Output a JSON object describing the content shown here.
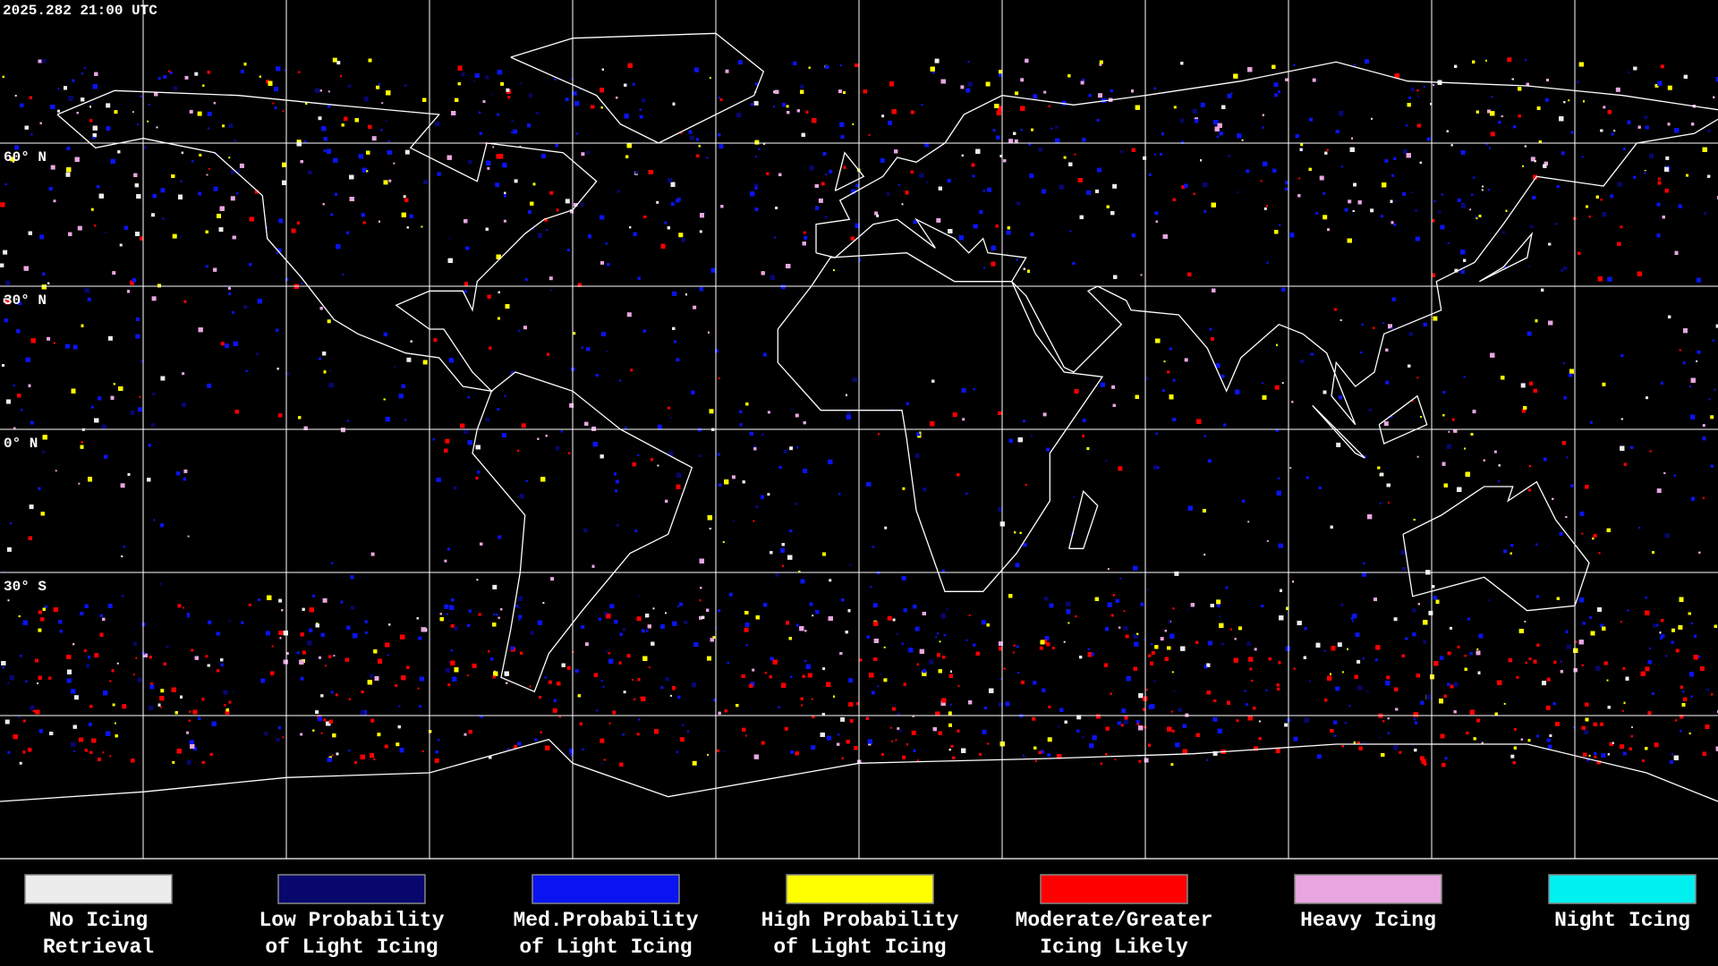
{
  "header": {
    "timestamp": "2025.282 21:00 UTC"
  },
  "map": {
    "latitude_labels": [
      "60° N",
      "30° N",
      "0° N",
      "30° S"
    ]
  },
  "legend": {
    "items": [
      {
        "lines": [
          "No Icing",
          "Retrieval"
        ],
        "color": "#ececec"
      },
      {
        "lines": [
          "Low Probability",
          "of Light Icing"
        ],
        "color": "#07076e"
      },
      {
        "lines": [
          "Med.Probability",
          "of Light Icing"
        ],
        "color": "#0a14f0"
      },
      {
        "lines": [
          "High Probability",
          "of Light Icing"
        ],
        "color": "#ffff00"
      },
      {
        "lines": [
          "Moderate/Greater",
          "Icing Likely"
        ],
        "color": "#ff0000"
      },
      {
        "lines": [
          "Heavy Icing"
        ],
        "color": "#e8a6e0"
      },
      {
        "lines": [
          "Night Icing"
        ],
        "color": "#00f0f0"
      }
    ]
  }
}
